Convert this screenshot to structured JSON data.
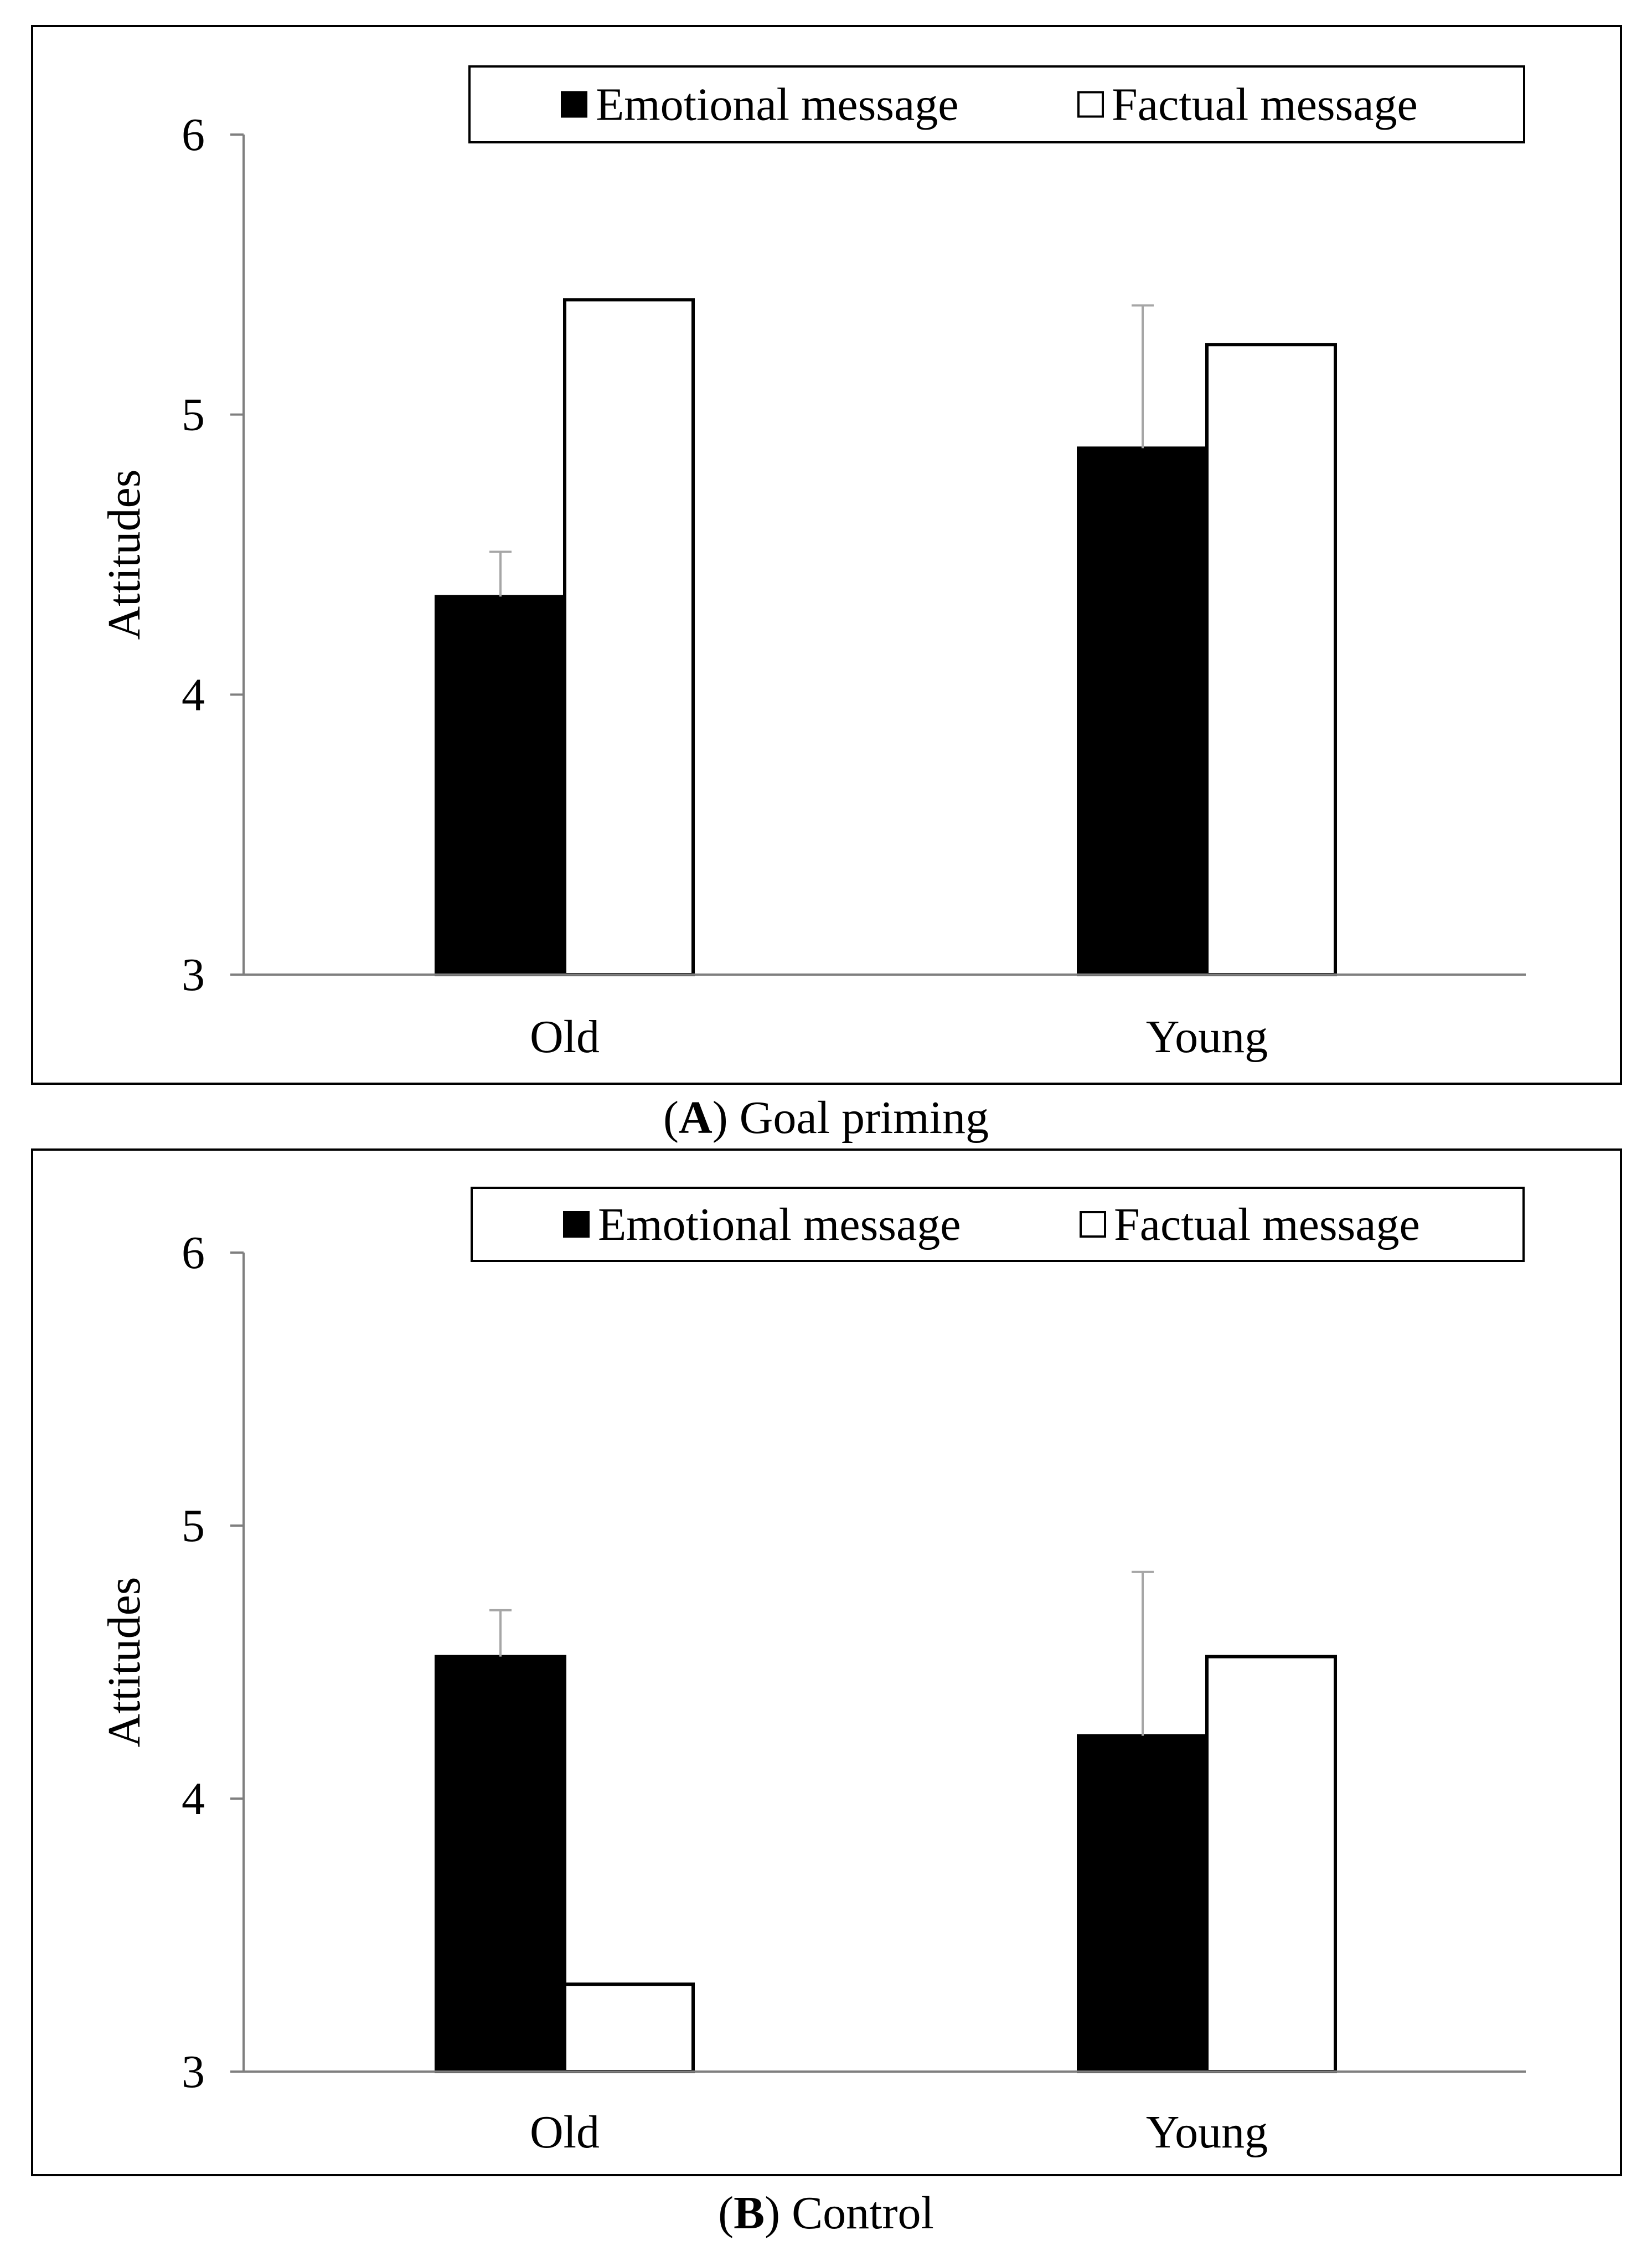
{
  "legend": {
    "emotional": "Emotional message",
    "factual": "Factual message"
  },
  "colors": {
    "emotional": "#000000",
    "factual": "#ffffff",
    "axis": "#7f7f7f",
    "error_bar": "#a6a6a6"
  },
  "panels": [
    {
      "caption_letter": "A",
      "caption_text": ") Goal priming"
    },
    {
      "caption_letter": "B",
      "caption_text": ") Control"
    }
  ],
  "chart_data": [
    {
      "type": "bar",
      "ylabel": "Attitudes",
      "xlabel": "",
      "ylim": [
        3,
        6
      ],
      "yticks": [
        3,
        4,
        5,
        6
      ],
      "grid": false,
      "legend_position": "top",
      "categories": [
        "Old",
        "Young"
      ],
      "series": [
        {
          "name": "Emotional message",
          "values": [
            4.35,
            4.88
          ],
          "error_upper": [
            4.51,
            5.39
          ]
        },
        {
          "name": "Factual message",
          "values": [
            5.41,
            5.25
          ],
          "error_upper": [
            null,
            null
          ]
        }
      ]
    },
    {
      "type": "bar",
      "ylabel": "Attitudes",
      "xlabel": "",
      "ylim": [
        3,
        6
      ],
      "yticks": [
        3,
        4,
        5,
        6
      ],
      "grid": false,
      "legend_position": "top",
      "categories": [
        "Old",
        "Young"
      ],
      "series": [
        {
          "name": "Emotional message",
          "values": [
            4.52,
            4.23
          ],
          "error_upper": [
            4.69,
            4.83
          ]
        },
        {
          "name": "Factual message",
          "values": [
            3.32,
            4.52
          ],
          "error_upper": [
            null,
            null
          ]
        }
      ]
    }
  ]
}
